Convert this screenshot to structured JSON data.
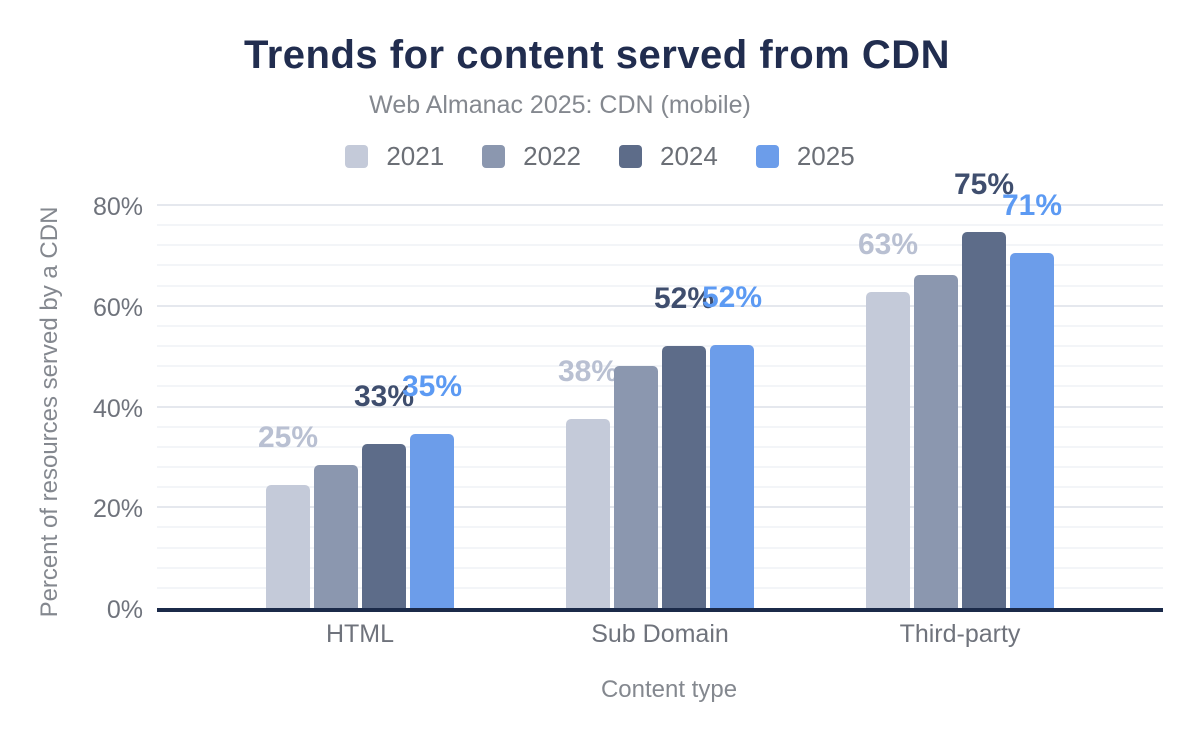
{
  "chart_data": {
    "type": "bar",
    "title": "Trends for content served from CDN",
    "subtitle": "Web Almanac 2025: CDN (mobile)",
    "categories": [
      "HTML",
      "Sub Domain",
      "Third-party"
    ],
    "series": [
      {
        "name": "2021",
        "color": "#c4cad9",
        "label_color": "#b9c0d2",
        "values": [
          24.5,
          37.5,
          62.8
        ],
        "labels": [
          "25%",
          "38%",
          "63%"
        ]
      },
      {
        "name": "2022",
        "color": "#8b97af",
        "label_color": "#8b97af",
        "values": [
          28.4,
          48.0,
          66.2
        ],
        "labels": [
          "",
          "",
          ""
        ]
      },
      {
        "name": "2024",
        "color": "#5d6c89",
        "label_color": "#3f4e6e",
        "values": [
          32.6,
          52.0,
          74.6
        ],
        "labels": [
          "33%",
          "52%",
          "75%"
        ]
      },
      {
        "name": "2025",
        "color": "#6c9dea",
        "label_color": "#5c9af3",
        "values": [
          34.5,
          52.3,
          70.5
        ],
        "labels": [
          "35%",
          "52%",
          "71%"
        ]
      }
    ],
    "xlabel": "Content type",
    "ylabel": "Percent of resources served by a CDN",
    "ylim": [
      0,
      80
    ],
    "yticks": [
      {
        "value": 0,
        "label": "0%"
      },
      {
        "value": 20,
        "label": "20%"
      },
      {
        "value": 40,
        "label": "40%"
      },
      {
        "value": 60,
        "label": "60%"
      },
      {
        "value": 80,
        "label": "80%"
      }
    ],
    "minor_grid_step": 4,
    "grid": true,
    "legend_position": "top"
  },
  "colors": {
    "background": "#ffffff",
    "title": "#212d4f",
    "subtitle": "#84888f",
    "axis_text": "#6f737c",
    "axis_title": "#84888f",
    "legend_text": "#6b6f76",
    "baseline": "#1b2a49",
    "grid_major": "#e5e8ee",
    "grid_minor": "#f3f5f8"
  }
}
